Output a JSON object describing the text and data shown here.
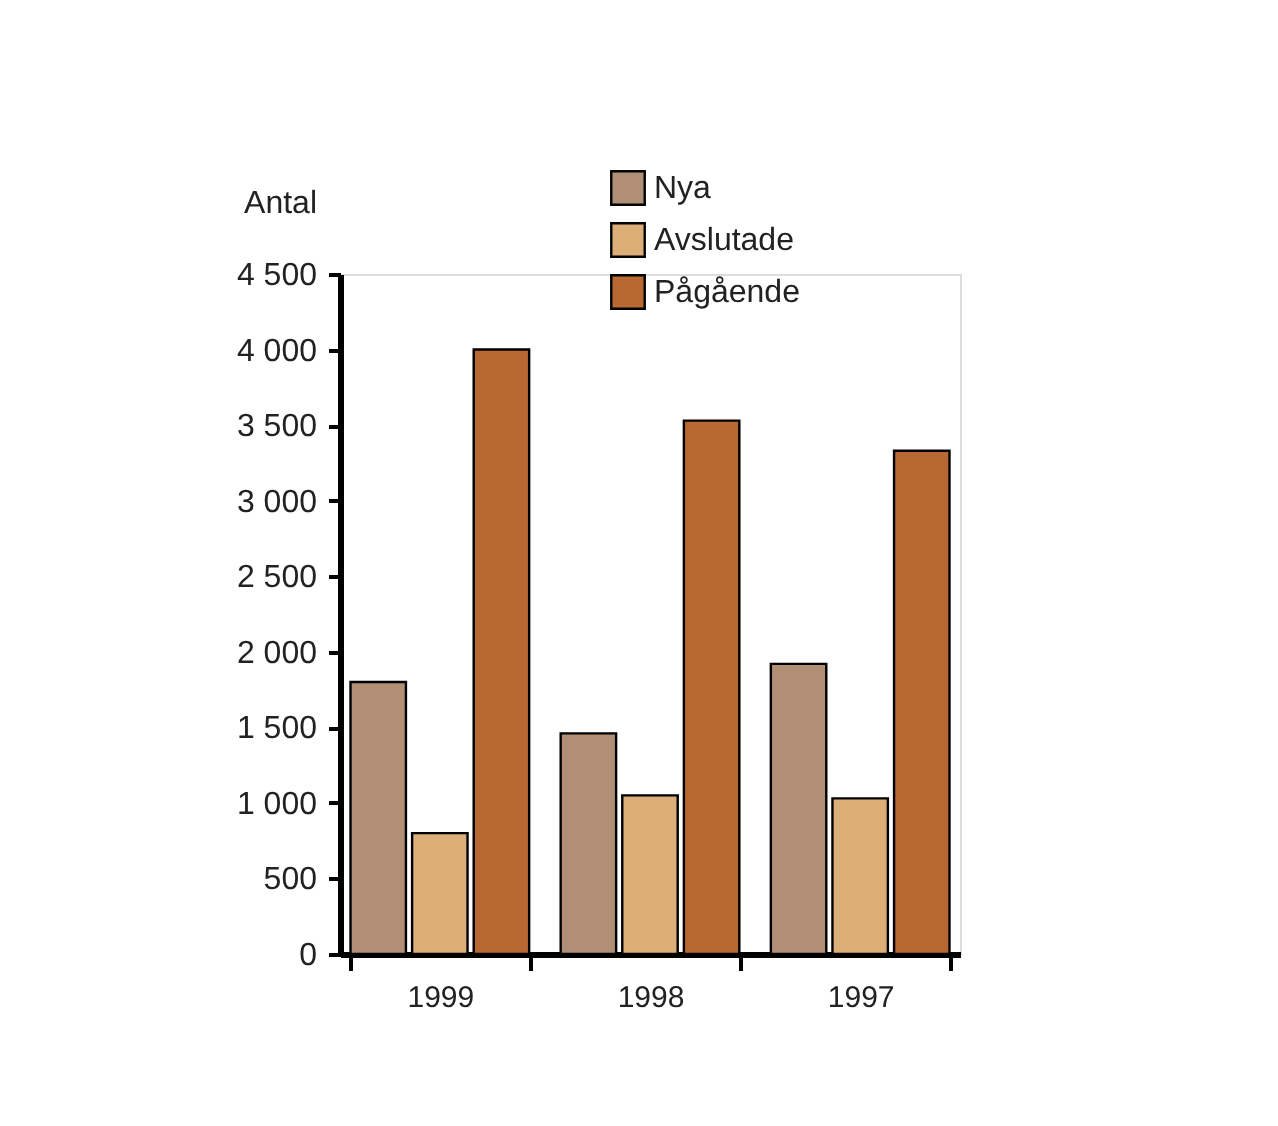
{
  "chart_data": {
    "type": "bar",
    "ylabel": "Antal",
    "categories": [
      "1999",
      "1998",
      "1997"
    ],
    "series": [
      {
        "name": "Nya",
        "color": "#b08f76",
        "values": [
          1800,
          1460,
          1920
        ]
      },
      {
        "name": "Avslutade",
        "color": "#dcae78",
        "values": [
          800,
          1050,
          1030
        ]
      },
      {
        "name": "Pågående",
        "color": "#b86832",
        "values": [
          4000,
          3530,
          3330
        ]
      }
    ],
    "ylim": [
      0,
      4500
    ],
    "yticks": [
      0,
      500,
      {
        "value": 1000,
        "label": "1 000"
      },
      {
        "value": 1500,
        "label": "1 500"
      },
      {
        "value": 2000,
        "label": "2 000"
      },
      {
        "value": 2500,
        "label": "2 500"
      },
      {
        "value": 3000,
        "label": "3 000"
      },
      {
        "value": 3500,
        "label": "3 500"
      },
      {
        "value": 4000,
        "label": "4 000"
      },
      {
        "value": 4500,
        "label": "4 500"
      }
    ],
    "grid": false,
    "legend": "top"
  }
}
